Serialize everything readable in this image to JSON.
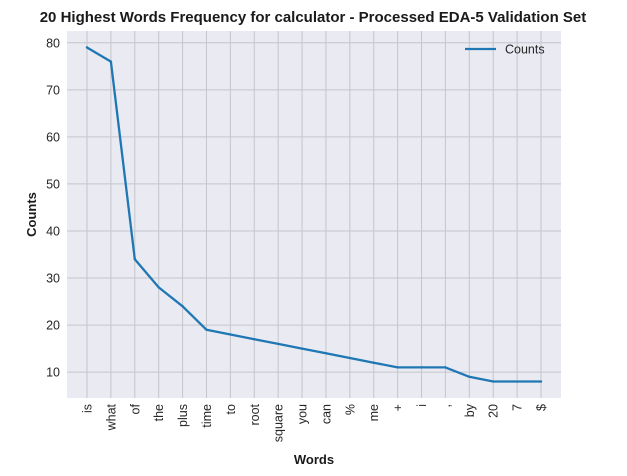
{
  "chart_data": {
    "type": "line",
    "title": "20 Highest Words Frequency for calculator - Processed EDA-5 Validation Set",
    "xlabel": "Words",
    "ylabel": "Counts",
    "categories": [
      "is",
      "what",
      "of",
      "the",
      "plus",
      "time",
      "to",
      "root",
      "square",
      "you",
      "can",
      "%",
      "me",
      "+",
      "i",
      ",",
      "by",
      "20",
      "7",
      "$"
    ],
    "series": [
      {
        "name": "Counts",
        "values": [
          79,
          76,
          34,
          28,
          24,
          19,
          18,
          17,
          16,
          15,
          14,
          13,
          12,
          11,
          11,
          11,
          9,
          8,
          8,
          8
        ]
      }
    ],
    "yticks": [
      10,
      20,
      30,
      40,
      50,
      60,
      70,
      80
    ],
    "ylim": [
      4.5,
      82.5
    ],
    "grid": true,
    "legend_position": "top-right",
    "colors": {
      "line": "#1f77b4",
      "background": "#eaeaf2",
      "grid": "#c4c6cc"
    }
  }
}
